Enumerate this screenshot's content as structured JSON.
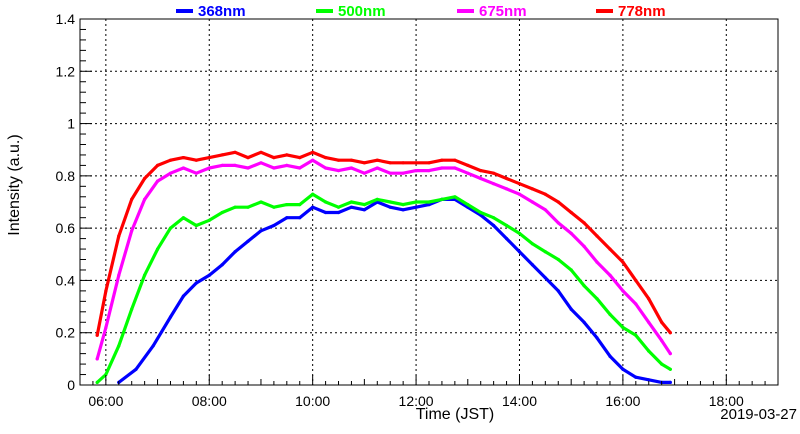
{
  "chart_data": {
    "type": "line",
    "title": "",
    "xlabel": "Time (JST)",
    "ylabel": "Intensity (a.u.)",
    "date": "2019-03-27",
    "xlim": [
      "05:30",
      "19:00"
    ],
    "ylim": [
      0,
      1.4
    ],
    "x_ticks": [
      "06:00",
      "08:00",
      "10:00",
      "12:00",
      "14:00",
      "16:00",
      "18:00"
    ],
    "y_ticks": [
      "0",
      "0.2",
      "0.4",
      "0.6",
      "0.8",
      "1",
      "1.2",
      "1.4"
    ],
    "grid": true,
    "legend_position": "top",
    "series": [
      {
        "name": "368nm",
        "color": "#0000ff",
        "points": [
          [
            "06:15",
            0.01
          ],
          [
            "06:35",
            0.06
          ],
          [
            "06:55",
            0.15
          ],
          [
            "07:15",
            0.26
          ],
          [
            "07:30",
            0.34
          ],
          [
            "07:45",
            0.39
          ],
          [
            "08:00",
            0.42
          ],
          [
            "08:15",
            0.46
          ],
          [
            "08:30",
            0.51
          ],
          [
            "08:45",
            0.55
          ],
          [
            "09:00",
            0.59
          ],
          [
            "09:15",
            0.61
          ],
          [
            "09:30",
            0.64
          ],
          [
            "09:45",
            0.64
          ],
          [
            "10:00",
            0.68
          ],
          [
            "10:15",
            0.66
          ],
          [
            "10:30",
            0.66
          ],
          [
            "10:45",
            0.68
          ],
          [
            "11:00",
            0.67
          ],
          [
            "11:15",
            0.7
          ],
          [
            "11:30",
            0.68
          ],
          [
            "11:45",
            0.67
          ],
          [
            "12:00",
            0.68
          ],
          [
            "12:15",
            0.69
          ],
          [
            "12:30",
            0.71
          ],
          [
            "12:45",
            0.71
          ],
          [
            "13:00",
            0.68
          ],
          [
            "13:15",
            0.65
          ],
          [
            "13:30",
            0.61
          ],
          [
            "13:45",
            0.56
          ],
          [
            "14:00",
            0.51
          ],
          [
            "14:15",
            0.46
          ],
          [
            "14:30",
            0.41
          ],
          [
            "14:45",
            0.36
          ],
          [
            "15:00",
            0.29
          ],
          [
            "15:15",
            0.24
          ],
          [
            "15:30",
            0.18
          ],
          [
            "15:45",
            0.11
          ],
          [
            "16:00",
            0.06
          ],
          [
            "16:15",
            0.03
          ],
          [
            "16:30",
            0.02
          ],
          [
            "16:45",
            0.01
          ],
          [
            "16:55",
            0.01
          ]
        ]
      },
      {
        "name": "500nm",
        "color": "#00ff00",
        "points": [
          [
            "05:50",
            0.01
          ],
          [
            "06:00",
            0.04
          ],
          [
            "06:15",
            0.15
          ],
          [
            "06:30",
            0.29
          ],
          [
            "06:45",
            0.42
          ],
          [
            "07:00",
            0.52
          ],
          [
            "07:15",
            0.6
          ],
          [
            "07:30",
            0.64
          ],
          [
            "07:45",
            0.61
          ],
          [
            "08:00",
            0.63
          ],
          [
            "08:15",
            0.66
          ],
          [
            "08:30",
            0.68
          ],
          [
            "08:45",
            0.68
          ],
          [
            "09:00",
            0.7
          ],
          [
            "09:15",
            0.68
          ],
          [
            "09:30",
            0.69
          ],
          [
            "09:45",
            0.69
          ],
          [
            "10:00",
            0.73
          ],
          [
            "10:15",
            0.7
          ],
          [
            "10:30",
            0.68
          ],
          [
            "10:45",
            0.7
          ],
          [
            "11:00",
            0.69
          ],
          [
            "11:15",
            0.71
          ],
          [
            "11:30",
            0.7
          ],
          [
            "11:45",
            0.69
          ],
          [
            "12:00",
            0.7
          ],
          [
            "12:15",
            0.7
          ],
          [
            "12:30",
            0.71
          ],
          [
            "12:45",
            0.72
          ],
          [
            "13:00",
            0.69
          ],
          [
            "13:15",
            0.66
          ],
          [
            "13:30",
            0.64
          ],
          [
            "13:45",
            0.61
          ],
          [
            "14:00",
            0.58
          ],
          [
            "14:15",
            0.54
          ],
          [
            "14:30",
            0.51
          ],
          [
            "14:45",
            0.48
          ],
          [
            "15:00",
            0.44
          ],
          [
            "15:15",
            0.38
          ],
          [
            "15:30",
            0.33
          ],
          [
            "15:45",
            0.27
          ],
          [
            "16:00",
            0.22
          ],
          [
            "16:15",
            0.19
          ],
          [
            "16:30",
            0.13
          ],
          [
            "16:45",
            0.08
          ],
          [
            "16:55",
            0.06
          ]
        ]
      },
      {
        "name": "675nm",
        "color": "#ff00ff",
        "points": [
          [
            "05:50",
            0.1
          ],
          [
            "06:00",
            0.22
          ],
          [
            "06:15",
            0.42
          ],
          [
            "06:30",
            0.59
          ],
          [
            "06:45",
            0.71
          ],
          [
            "07:00",
            0.78
          ],
          [
            "07:15",
            0.81
          ],
          [
            "07:30",
            0.83
          ],
          [
            "07:45",
            0.81
          ],
          [
            "08:00",
            0.83
          ],
          [
            "08:15",
            0.84
          ],
          [
            "08:30",
            0.84
          ],
          [
            "08:45",
            0.83
          ],
          [
            "09:00",
            0.85
          ],
          [
            "09:15",
            0.83
          ],
          [
            "09:30",
            0.84
          ],
          [
            "09:45",
            0.83
          ],
          [
            "10:00",
            0.86
          ],
          [
            "10:15",
            0.83
          ],
          [
            "10:30",
            0.82
          ],
          [
            "10:45",
            0.83
          ],
          [
            "11:00",
            0.81
          ],
          [
            "11:15",
            0.83
          ],
          [
            "11:30",
            0.81
          ],
          [
            "11:45",
            0.81
          ],
          [
            "12:00",
            0.82
          ],
          [
            "12:15",
            0.82
          ],
          [
            "12:30",
            0.83
          ],
          [
            "12:45",
            0.83
          ],
          [
            "13:00",
            0.81
          ],
          [
            "13:15",
            0.79
          ],
          [
            "13:30",
            0.77
          ],
          [
            "13:45",
            0.75
          ],
          [
            "14:00",
            0.73
          ],
          [
            "14:15",
            0.7
          ],
          [
            "14:30",
            0.67
          ],
          [
            "14:45",
            0.62
          ],
          [
            "15:00",
            0.58
          ],
          [
            "15:15",
            0.53
          ],
          [
            "15:30",
            0.47
          ],
          [
            "15:45",
            0.42
          ],
          [
            "16:00",
            0.36
          ],
          [
            "16:15",
            0.31
          ],
          [
            "16:30",
            0.24
          ],
          [
            "16:45",
            0.17
          ],
          [
            "16:55",
            0.12
          ]
        ]
      },
      {
        "name": "778nm",
        "color": "#ff0000",
        "points": [
          [
            "05:50",
            0.19
          ],
          [
            "06:00",
            0.36
          ],
          [
            "06:15",
            0.57
          ],
          [
            "06:30",
            0.71
          ],
          [
            "06:45",
            0.79
          ],
          [
            "07:00",
            0.84
          ],
          [
            "07:15",
            0.86
          ],
          [
            "07:30",
            0.87
          ],
          [
            "07:45",
            0.86
          ],
          [
            "08:00",
            0.87
          ],
          [
            "08:15",
            0.88
          ],
          [
            "08:30",
            0.89
          ],
          [
            "08:45",
            0.87
          ],
          [
            "09:00",
            0.89
          ],
          [
            "09:15",
            0.87
          ],
          [
            "09:30",
            0.88
          ],
          [
            "09:45",
            0.87
          ],
          [
            "10:00",
            0.89
          ],
          [
            "10:15",
            0.87
          ],
          [
            "10:30",
            0.86
          ],
          [
            "10:45",
            0.86
          ],
          [
            "11:00",
            0.85
          ],
          [
            "11:15",
            0.86
          ],
          [
            "11:30",
            0.85
          ],
          [
            "11:45",
            0.85
          ],
          [
            "12:00",
            0.85
          ],
          [
            "12:15",
            0.85
          ],
          [
            "12:30",
            0.86
          ],
          [
            "12:45",
            0.86
          ],
          [
            "13:00",
            0.84
          ],
          [
            "13:15",
            0.82
          ],
          [
            "13:30",
            0.81
          ],
          [
            "13:45",
            0.79
          ],
          [
            "14:00",
            0.77
          ],
          [
            "14:15",
            0.75
          ],
          [
            "14:30",
            0.73
          ],
          [
            "14:45",
            0.7
          ],
          [
            "15:00",
            0.66
          ],
          [
            "15:15",
            0.62
          ],
          [
            "15:30",
            0.57
          ],
          [
            "15:45",
            0.52
          ],
          [
            "16:00",
            0.47
          ],
          [
            "16:15",
            0.4
          ],
          [
            "16:30",
            0.33
          ],
          [
            "16:45",
            0.24
          ],
          [
            "16:55",
            0.2
          ]
        ]
      }
    ]
  }
}
